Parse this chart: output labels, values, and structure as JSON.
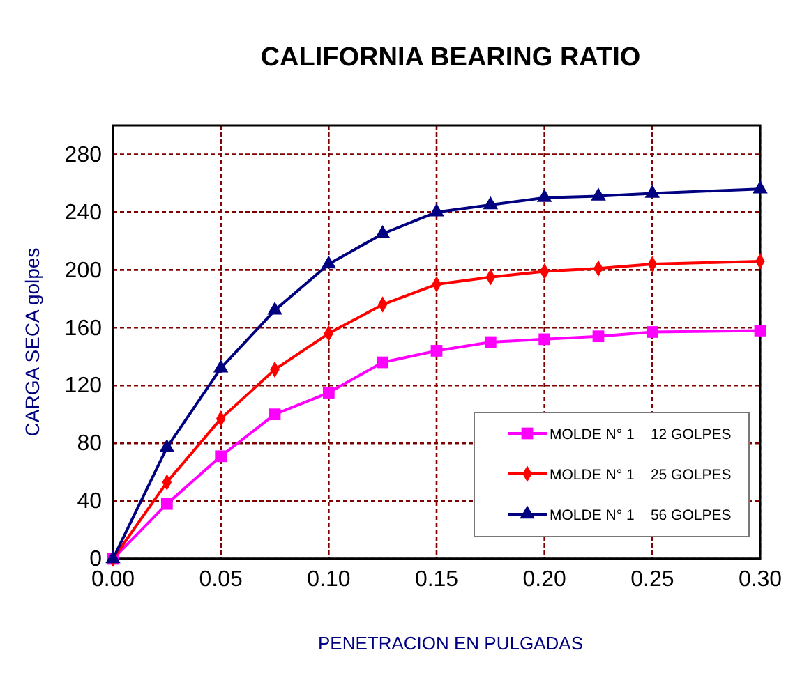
{
  "chart_data": {
    "type": "line",
    "title": "CALIFORNIA BEARING  RATIO",
    "xlabel": "PENETRACION EN PULGADAS",
    "ylabel": "CARGA  SECA   golpes",
    "x": [
      0,
      0.025,
      0.05,
      0.075,
      0.1,
      0.125,
      0.15,
      0.175,
      0.2,
      0.225,
      0.25,
      0.3
    ],
    "xlim": [
      0,
      0.3
    ],
    "xticks": [
      {
        "value": 0,
        "label": "0.00"
      },
      {
        "value": 0.05,
        "label": "0.05"
      },
      {
        "value": 0.1,
        "label": "0.10"
      },
      {
        "value": 0.15,
        "label": "0.15"
      },
      {
        "value": 0.2,
        "label": "0.20"
      },
      {
        "value": 0.25,
        "label": "0.25"
      },
      {
        "value": 0.3,
        "label": "0.30"
      }
    ],
    "ylim": [
      0,
      300
    ],
    "yticks": [
      0,
      40,
      80,
      120,
      160,
      200,
      240,
      280
    ],
    "grid": true,
    "legend": "bottom right",
    "series": [
      {
        "name": "MOLDE N° 1    12 GOLPES",
        "color": "#ff00ff",
        "marker": "square",
        "values": [
          0,
          38,
          71,
          100,
          115,
          136,
          144,
          150,
          152,
          154,
          157,
          158
        ]
      },
      {
        "name": "MOLDE N° 1    25 GOLPES",
        "color": "#ff0000",
        "marker": "diamond",
        "values": [
          0,
          53,
          97,
          131,
          156,
          176,
          190,
          195,
          199,
          201,
          204,
          206
        ]
      },
      {
        "name": "MOLDE N° 1    56 GOLPES",
        "color": "#000080",
        "marker": "triangle",
        "values": [
          0,
          77,
          132,
          172,
          204,
          225,
          240,
          245,
          250,
          251,
          253,
          256
        ]
      }
    ]
  }
}
